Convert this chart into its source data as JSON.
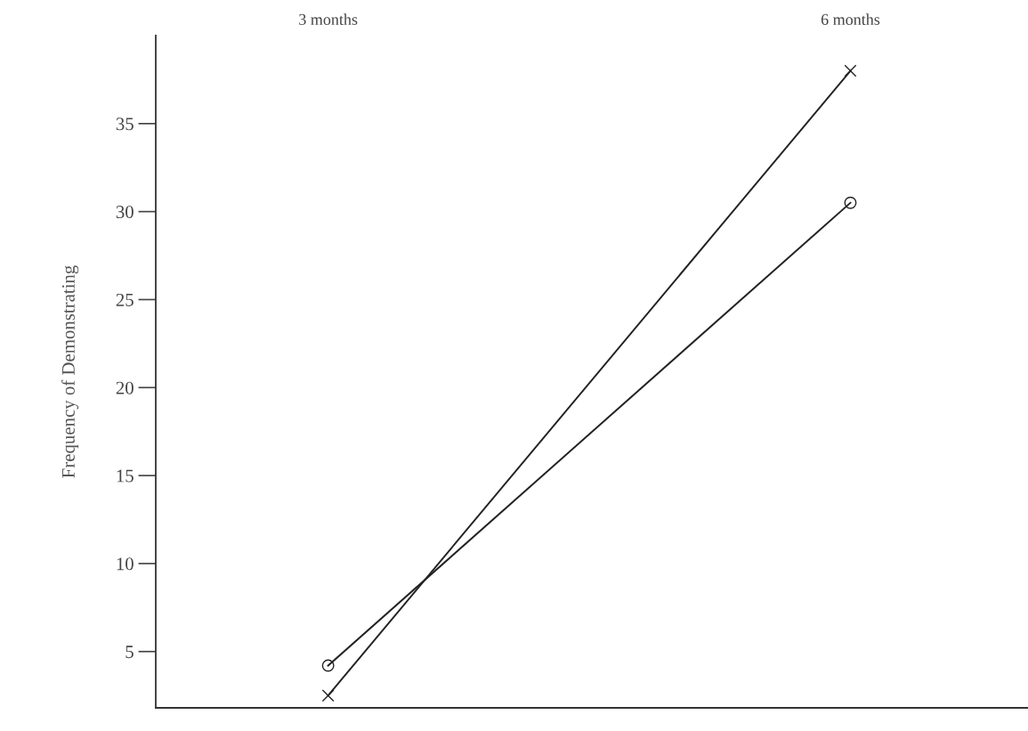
{
  "chart_data": {
    "type": "line",
    "ylabel": "Frequency of Demonstrating",
    "categories": [
      "3 months",
      "6 months"
    ],
    "series": [
      {
        "color": "#222222",
        "marker": "cross",
        "values": [
          2.5,
          38
        ]
      },
      {
        "color": "#222222",
        "marker": "circle",
        "values": [
          4.2,
          30.5
        ]
      }
    ],
    "ylim": [
      1.8,
      40
    ],
    "yticks": [
      5,
      10,
      15,
      20,
      25,
      30,
      35
    ],
    "grid": false
  }
}
